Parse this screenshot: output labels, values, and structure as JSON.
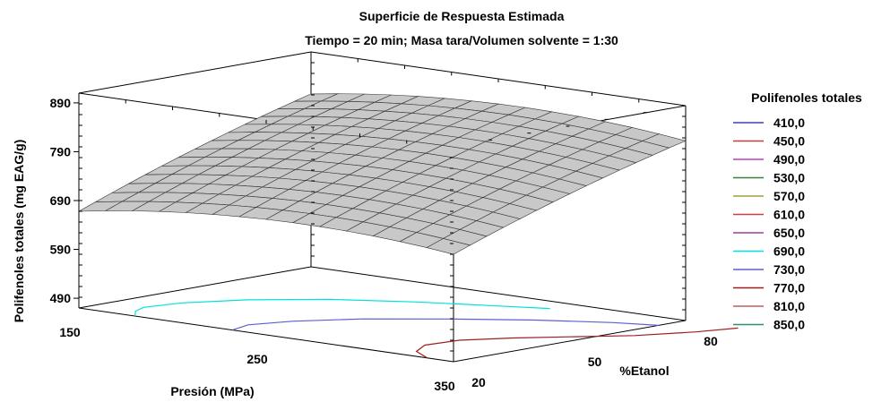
{
  "chart_data": {
    "type": "surface",
    "title": "Superficie de Respuesta Estimada",
    "subtitle": "Tiempo = 20 min; Masa tara/Volumen solvente = 1:30",
    "xlabel": "Presión (MPa)",
    "ylabel": "%Etanol",
    "zlabel": "Polifenoles totales (mg EAG/g)",
    "x_ticks": [
      "150",
      "250",
      "350"
    ],
    "y_ticks": [
      "20",
      "50",
      "80"
    ],
    "z_ticks": [
      "490",
      "590",
      "690",
      "790",
      "890"
    ],
    "xlim": [
      150,
      350
    ],
    "ylim": [
      20,
      80
    ],
    "zlim": [
      470,
      910
    ],
    "grid": false,
    "legend_title": "Polifenoles totales",
    "legend_position": "right",
    "surface_corners": {
      "p150_e20": 668,
      "p350_e20": 690,
      "p150_e80": 824,
      "p350_e80": 838,
      "peak": 852
    },
    "contours": [
      {
        "label": "410,0",
        "color": "#3f3fbf"
      },
      {
        "label": "450,0",
        "color": "#bf3f3f"
      },
      {
        "label": "490,0",
        "color": "#bf3fbf"
      },
      {
        "label": "530,0",
        "color": "#3f7f3f"
      },
      {
        "label": "570,0",
        "color": "#9f9f3f"
      },
      {
        "label": "610,0",
        "color": "#cf3f3f"
      },
      {
        "label": "650,0",
        "color": "#9f3f9f"
      },
      {
        "label": "690,0",
        "color": "#00e0e0"
      },
      {
        "label": "730,0",
        "color": "#5f5fcf"
      },
      {
        "label": "770,0",
        "color": "#9f1f1f"
      },
      {
        "label": "810,0",
        "color": "#bf5f5f"
      },
      {
        "label": "850,0",
        "color": "#2f8f6f"
      }
    ],
    "visible_contours": [
      "690,0",
      "730,0",
      "770,0"
    ],
    "surface_color": "#c8c8c8"
  }
}
